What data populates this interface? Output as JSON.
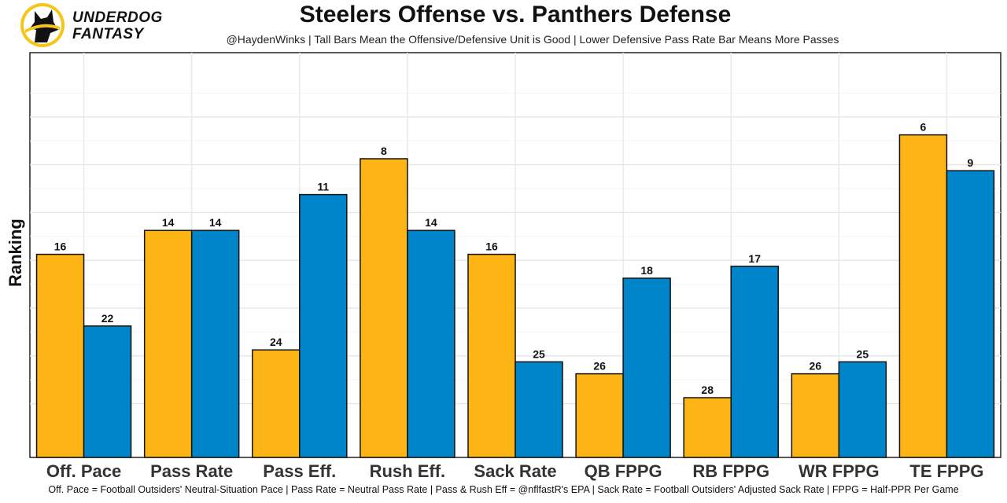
{
  "brand": {
    "line1": "UNDERDOG",
    "line2": "FANTASY",
    "logo_icon": "dog-head-icon",
    "accent": "#f5c518"
  },
  "chart_data": {
    "type": "bar",
    "title": "Steelers Offense vs. Panthers Defense",
    "subtitle": "@HaydenWinks | Tall Bars Mean the Offensive/Defensive Unit is Good | Lower Defensive Pass Rate Bar Means More Passes",
    "xlabel": "",
    "ylabel": "Ranking",
    "footnote": "Off. Pace = Football Outsiders' Neutral-Situation Pace | Pass Rate = Neutral Pass Rate | Pass & Rush Eff = @nflfastR's EPA | Sack Rate = Football Outsiders' Adjusted Sack Rate | FPPG = Half-PPR Per Game",
    "categories": [
      "Off. Pace",
      "Pass Rate",
      "Pass Eff.",
      "Rush Eff.",
      "Sack Rate",
      "QB FPPG",
      "RB FPPG",
      "WR FPPG",
      "TE FPPG"
    ],
    "series": [
      {
        "name": "Steelers Offense",
        "color": "#fdb515",
        "values": [
          16,
          14,
          24,
          8,
          16,
          26,
          28,
          26,
          6
        ]
      },
      {
        "name": "Panthers Defense",
        "color": "#0085ca",
        "values": [
          22,
          14,
          11,
          14,
          25,
          18,
          17,
          25,
          9
        ]
      }
    ],
    "value_note": "Bar height is inverted: rank 1 is tallest (height proportional to 33 minus rank)",
    "rank_max": 32,
    "grid": true,
    "legend": "none"
  }
}
